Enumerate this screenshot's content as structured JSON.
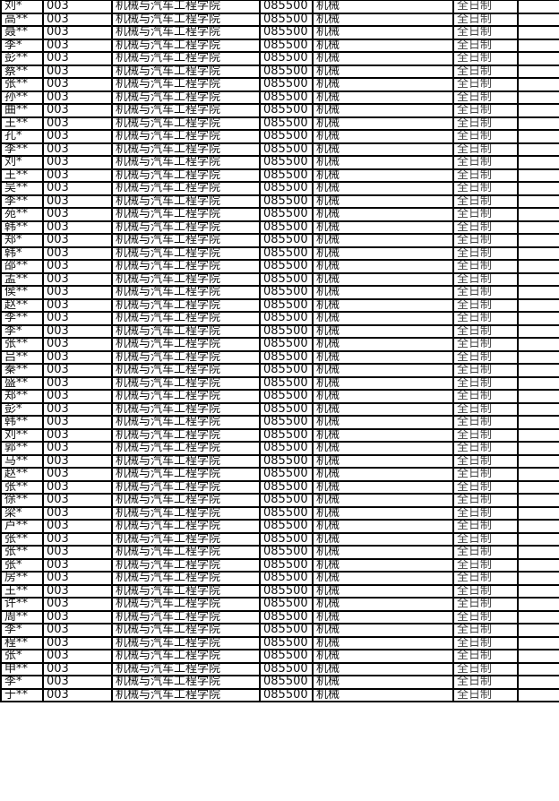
{
  "rows_common": {
    "dept_code": "003",
    "college": "机械与汽车工程学院",
    "major_code": "085500",
    "major": "机械",
    "study_mode": "全日制"
  },
  "names": [
    "刘*",
    "高**",
    "聂**",
    "李*",
    "彭**",
    "蔡**",
    "张**",
    "孙**",
    "曲**",
    "王**",
    "孔*",
    "李**",
    "刘*",
    "王**",
    "吴**",
    "李**",
    "苑**",
    "韩**",
    "郑*",
    "韩*",
    "邵**",
    "孟**",
    "侯**",
    "赵**",
    "李**",
    "李*",
    "张**",
    "吕**",
    "秦**",
    "盛**",
    "郑**",
    "彭*",
    "韩**",
    "刘**",
    "郭**",
    "马**",
    "赵**",
    "张**",
    "徐**",
    "梁*",
    "卢**",
    "张**",
    "张**",
    "张*",
    "房**",
    "王**",
    "许**",
    "周**",
    "李*",
    "程**",
    "张*",
    "申**",
    "李*",
    "于**"
  ]
}
